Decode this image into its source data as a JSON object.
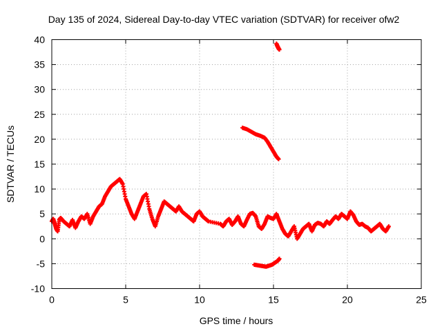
{
  "chart_data": {
    "type": "scatter",
    "title": "Day 135 of 2024, Sidereal Day-to-day VTEC variation (SDTVAR) for receiver ofw2",
    "xlabel": "GPS time / hours",
    "ylabel": "SDTVAR / TECUs",
    "xlim": [
      0,
      25
    ],
    "ylim": [
      -10,
      40
    ],
    "xticks": [
      "0",
      "5",
      "10",
      "15",
      "20",
      "25"
    ],
    "yticks": [
      "-10",
      "-5",
      "0",
      "5",
      "10",
      "15",
      "20",
      "25",
      "30",
      "35",
      "40"
    ],
    "grid": true,
    "series": [
      {
        "name": "SDTVAR",
        "color": "#ff0000",
        "marker": "plus",
        "x": [
          0.0,
          0.1,
          0.2,
          0.3,
          0.4,
          0.5,
          0.6,
          0.8,
          1.0,
          1.2,
          1.4,
          1.6,
          1.8,
          2.0,
          2.2,
          2.4,
          2.6,
          2.8,
          3.0,
          3.2,
          3.4,
          3.6,
          3.8,
          4.0,
          4.2,
          4.4,
          4.6,
          4.8,
          5.0,
          5.2,
          5.4,
          5.6,
          5.8,
          6.0,
          6.2,
          6.4,
          6.6,
          6.8,
          7.0,
          7.2,
          7.4,
          7.6,
          7.8,
          8.0,
          8.2,
          8.4,
          8.6,
          8.8,
          9.0,
          9.2,
          9.4,
          9.6,
          9.8,
          10.0,
          10.2,
          10.4,
          10.6,
          11.4,
          11.6,
          11.8,
          12.0,
          12.2,
          12.4,
          12.6,
          12.8,
          13.0,
          13.2,
          13.4,
          13.6,
          13.8,
          14.0,
          14.2,
          14.4,
          14.6,
          14.8,
          15.0,
          15.2,
          15.4,
          15.6,
          15.8,
          16.0,
          16.2,
          16.4,
          16.6,
          16.8,
          17.0,
          17.2,
          17.4,
          17.6,
          17.8,
          18.0,
          18.2,
          18.4,
          18.6,
          18.8,
          19.0,
          19.2,
          19.4,
          19.6,
          19.8,
          20.0,
          20.2,
          20.4,
          20.6,
          20.8,
          21.0,
          21.2,
          21.4,
          21.6,
          21.8,
          22.0,
          22.2,
          22.4,
          22.6,
          22.8
        ],
        "y": [
          3.5,
          4.0,
          3.0,
          2.0,
          1.5,
          3.8,
          4.2,
          3.5,
          3.0,
          2.5,
          3.8,
          2.2,
          3.5,
          4.5,
          4.0,
          5.0,
          3.0,
          4.5,
          5.5,
          6.5,
          7.0,
          8.5,
          9.5,
          10.5,
          11.0,
          11.5,
          12.0,
          11.0,
          8.0,
          6.5,
          5.0,
          4.0,
          5.5,
          7.0,
          8.5,
          9.0,
          6.0,
          4.0,
          2.5,
          4.5,
          6.0,
          7.5,
          7.0,
          6.5,
          6.0,
          5.5,
          6.5,
          5.5,
          5.0,
          4.5,
          4.0,
          3.5,
          5.0,
          5.5,
          4.5,
          4.0,
          3.5,
          3.0,
          2.5,
          3.5,
          4.0,
          2.8,
          3.5,
          4.5,
          3.0,
          2.5,
          3.8,
          5.0,
          5.2,
          4.5,
          2.5,
          2.0,
          3.0,
          4.5,
          4.2,
          4.0,
          5.0,
          3.5,
          2.0,
          1.0,
          0.5,
          1.5,
          2.5,
          0.0,
          1.0,
          2.0,
          2.5,
          3.0,
          1.5,
          2.8,
          3.2,
          3.0,
          2.5,
          3.5,
          3.0,
          3.8,
          4.5,
          4.0,
          5.0,
          4.5,
          4.0,
          5.5,
          4.8,
          3.5,
          2.8,
          3.0,
          2.5,
          2.2,
          1.5,
          2.0,
          2.5,
          3.0,
          2.0,
          1.5,
          2.5
        ],
        "extra_segments": [
          {
            "x": [
              12.9,
              13.2,
              13.5,
              13.8,
              14.1,
              14.4,
              14.6,
              14.8,
              15.0,
              15.2,
              15.35
            ],
            "y": [
              22.3,
              22.0,
              21.5,
              21.0,
              20.7,
              20.3,
              19.5,
              18.5,
              17.5,
              16.5,
              16.0
            ]
          },
          {
            "x": [
              15.2,
              15.25,
              15.3,
              15.35,
              15.4
            ],
            "y": [
              39.2,
              38.8,
              38.5,
              38.2,
              38.0
            ]
          },
          {
            "x": [
              13.7,
              13.9,
              14.1,
              14.3,
              14.5,
              14.7,
              14.9,
              15.1,
              15.3,
              15.4
            ],
            "y": [
              -5.2,
              -5.3,
              -5.4,
              -5.5,
              -5.6,
              -5.4,
              -5.2,
              -4.8,
              -4.4,
              -4.0
            ]
          }
        ]
      }
    ]
  }
}
